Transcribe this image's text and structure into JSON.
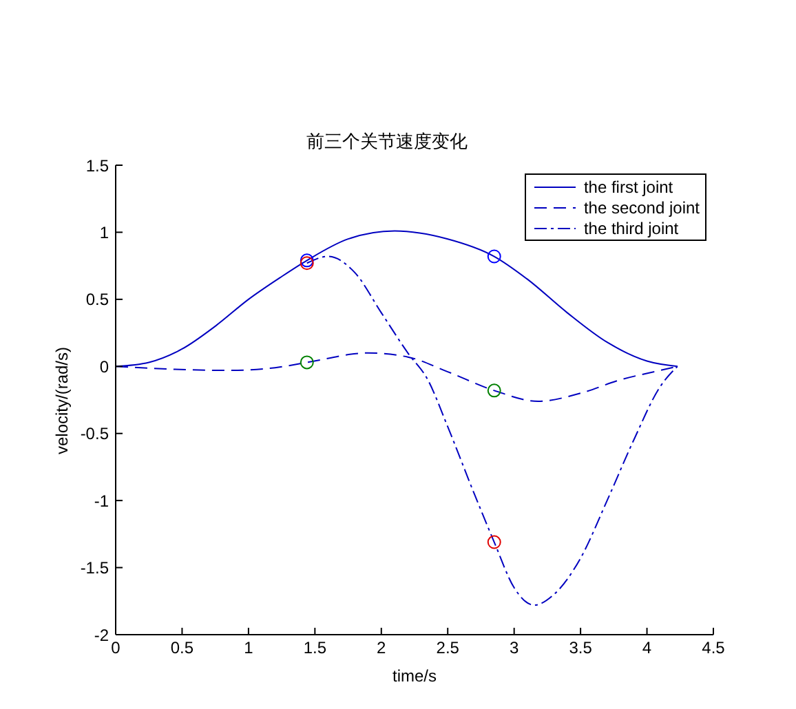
{
  "chart_data": {
    "type": "line",
    "title": "前三个关节速度变化",
    "xlabel": "time/s",
    "ylabel": "velocity/(rad/s)",
    "xlim": [
      0,
      4.5
    ],
    "xticks": [
      0,
      0.5,
      1,
      1.5,
      2,
      2.5,
      3,
      3.5,
      4,
      4.5
    ],
    "ylim": [
      -2,
      1.5
    ],
    "yticks": [
      -2,
      -1.5,
      -1,
      -0.5,
      0,
      0.5,
      1,
      1.5
    ],
    "grid": false,
    "legend": "top right",
    "marker": "none",
    "series": [
      {
        "name": "the first joint",
        "color": "#0000c0",
        "line_style": "solid",
        "x": [
          0,
          0.25,
          0.5,
          0.75,
          1,
          1.25,
          1.44,
          1.75,
          2.1,
          2.5,
          2.85,
          3.1,
          3.4,
          3.7,
          4,
          4.23
        ],
        "values": [
          0,
          0.03,
          0.13,
          0.3,
          0.5,
          0.67,
          0.79,
          0.95,
          1.01,
          0.95,
          0.82,
          0.65,
          0.4,
          0.18,
          0.04,
          0
        ]
      },
      {
        "name": "the second joint",
        "color": "#0000c0",
        "line_style": "dashed",
        "x": [
          0,
          0.4,
          0.85,
          1.2,
          1.44,
          1.9,
          2.2,
          2.5,
          2.85,
          3.18,
          3.5,
          3.8,
          4.1,
          4.23
        ],
        "values": [
          0,
          -0.02,
          -0.03,
          -0.01,
          0.03,
          0.1,
          0.07,
          -0.04,
          -0.18,
          -0.26,
          -0.2,
          -0.1,
          -0.03,
          0
        ]
      },
      {
        "name": "the third joint",
        "color": "#0000c0",
        "line_style": "dashdot",
        "x": [
          1.44,
          1.6,
          1.8,
          2,
          2.2,
          2.35,
          2.5,
          2.7,
          2.85,
          3,
          3.15,
          3.3,
          3.5,
          3.7,
          3.9,
          4.1,
          4.23
        ],
        "values": [
          0.77,
          0.82,
          0.7,
          0.4,
          0.1,
          -0.1,
          -0.45,
          -0.95,
          -1.31,
          -1.65,
          -1.78,
          -1.7,
          -1.43,
          -1,
          -0.55,
          -0.15,
          0
        ]
      },
      {
        "type": "scatter",
        "marker": "circle",
        "color": "#0000ff",
        "x": [
          1.44,
          2.85
        ],
        "values": [
          0.79,
          0.82
        ]
      },
      {
        "type": "scatter",
        "marker": "circle",
        "color": "#008000",
        "x": [
          1.44,
          2.85
        ],
        "values": [
          0.03,
          -0.18
        ]
      },
      {
        "type": "scatter",
        "marker": "circle",
        "color": "#e00000",
        "x": [
          1.44,
          2.85
        ],
        "values": [
          0.77,
          -1.31
        ]
      }
    ]
  }
}
